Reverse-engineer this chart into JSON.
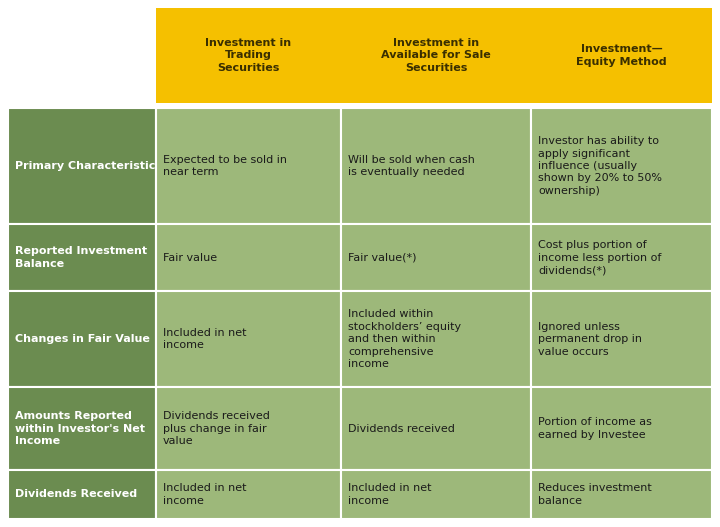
{
  "header_bg": "#F5C000",
  "header_text_color": "#3A2F00",
  "row_label_bg": "#6B8C50",
  "row_label_text_color": "#FFFFFF",
  "cell_bg": "#9DB87A",
  "cell_text_color": "#1A1A1A",
  "outer_bg": "#FFFFFF",
  "border_color": "#FFFFFF",
  "headers": [
    "Investment in\nTrading\nSecurities",
    "Investment in\nAvailable for Sale\nSecurities",
    "Investment—\nEquity Method"
  ],
  "row_labels": [
    "Primary Characteristic",
    "Reported Investment\nBalance",
    "Changes in Fair Value",
    "Amounts Reported\nwithin Investor's Net\nIncome",
    "Dividends Received"
  ],
  "cells": [
    [
      "Expected to be sold in\nnear term",
      "Will be sold when cash\nis eventually needed",
      "Investor has ability to\napply significant\ninfluence (usually\nshown by 20% to 50%\nownership)"
    ],
    [
      "Fair value",
      "Fair value(*)",
      "Cost plus portion of\nincome less portion of\ndividends(*)"
    ],
    [
      "Included in net\nincome",
      "Included within\nstockholders’ equity\nand then within\ncomprehensive\nincome",
      "Ignored unless\npermanent drop in\nvalue occurs"
    ],
    [
      "Dividends received\nplus change in fair\nvalue",
      "Dividends received",
      "Portion of income as\nearned by Investee"
    ],
    [
      "Included in net\nincome",
      "Included in net\nincome",
      "Reduces investment\nbalance"
    ]
  ],
  "font_size_header": 8.0,
  "font_size_label": 8.0,
  "font_size_cell": 8.0
}
